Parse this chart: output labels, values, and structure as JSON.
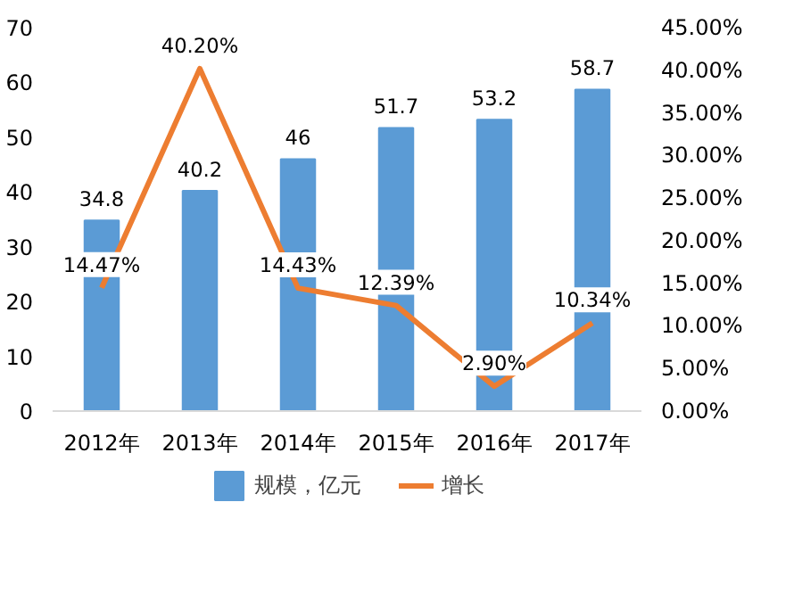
{
  "chart_data": {
    "type": "bar",
    "categories": [
      "2012年",
      "2013年",
      "2014年",
      "2015年",
      "2016年",
      "2017年"
    ],
    "series": [
      {
        "name": "规模，亿元",
        "type": "bar",
        "color": "#5b9bd5",
        "values": [
          34.8,
          40.2,
          46,
          51.7,
          53.2,
          58.7
        ],
        "value_labels": [
          "34.8",
          "40.2",
          "46",
          "51.7",
          "53.2",
          "58.7"
        ]
      },
      {
        "name": "增长",
        "type": "line",
        "axis": "y2",
        "color": "#ed7d31",
        "values": [
          14.47,
          40.2,
          14.43,
          12.39,
          2.9,
          10.34
        ],
        "value_labels": [
          "14.47%",
          "40.20%",
          "14.43%",
          "12.39%",
          "2.90%",
          "10.34%"
        ]
      }
    ],
    "ylim": [
      0,
      70
    ],
    "yticks": [
      0,
      10,
      20,
      30,
      40,
      50,
      60,
      70
    ],
    "y2lim": [
      0,
      45
    ],
    "y2ticks": [
      {
        "value": 0,
        "label": "0.00%"
      },
      {
        "value": 5,
        "label": "5.00%"
      },
      {
        "value": 10,
        "label": "10.00%"
      },
      {
        "value": 15,
        "label": "15.00%"
      },
      {
        "value": 20,
        "label": "20.00%"
      },
      {
        "value": 25,
        "label": "25.00%"
      },
      {
        "value": 30,
        "label": "30.00%"
      },
      {
        "value": 35,
        "label": "35.00%"
      },
      {
        "value": 40,
        "label": "40.00%"
      },
      {
        "value": 45,
        "label": "45.00%"
      }
    ],
    "legend": "bottom",
    "grid": false,
    "marker": "none",
    "line_style": "solid"
  }
}
